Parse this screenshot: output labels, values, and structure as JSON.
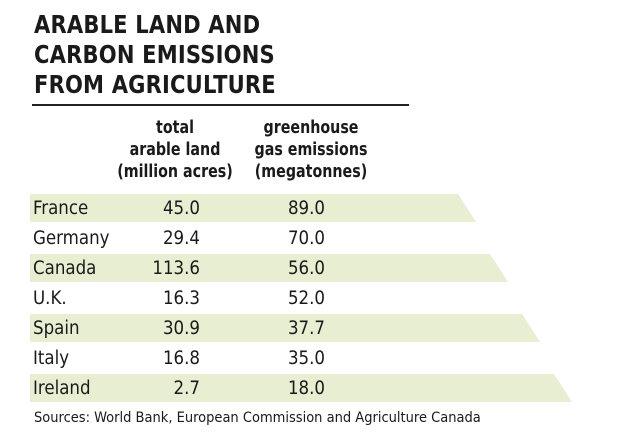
{
  "title_lines": [
    "ARABLE LAND AND",
    "CARBON EMISSIONS",
    "FROM AGRICULTURE"
  ],
  "columns": [
    {
      "lines": [
        "total",
        "arable land",
        "(million acres)"
      ]
    },
    {
      "lines": [
        "greenhouse",
        "gas emissions",
        "(megatonnes)"
      ]
    }
  ],
  "colors": {
    "band": "#e8eed2",
    "text": "#1a1a1a",
    "rule": "#222222"
  },
  "chart_data": {
    "type": "table",
    "title": "ARABLE LAND AND CARBON EMISSIONS FROM AGRICULTURE",
    "columns": [
      "total arable land (million acres)",
      "greenhouse gas emissions (megatonnes)"
    ],
    "rows": [
      {
        "country": "France",
        "land": "45.0",
        "ghg": "89.0",
        "shaded": true
      },
      {
        "country": "Germany",
        "land": "29.4",
        "ghg": "70.0",
        "shaded": false
      },
      {
        "country": "Canada",
        "land": "113.6",
        "ghg": "56.0",
        "shaded": true
      },
      {
        "country": "U.K.",
        "land": "16.3",
        "ghg": "52.0",
        "shaded": false
      },
      {
        "country": "Spain",
        "land": "30.9",
        "ghg": "37.7",
        "shaded": true
      },
      {
        "country": "Italy",
        "land": "16.8",
        "ghg": "35.0",
        "shaded": false
      },
      {
        "country": "Ireland",
        "land": "2.7",
        "ghg": "18.0",
        "shaded": true
      }
    ]
  },
  "source": "Sources: World Bank, European Commission and Agriculture Canada"
}
